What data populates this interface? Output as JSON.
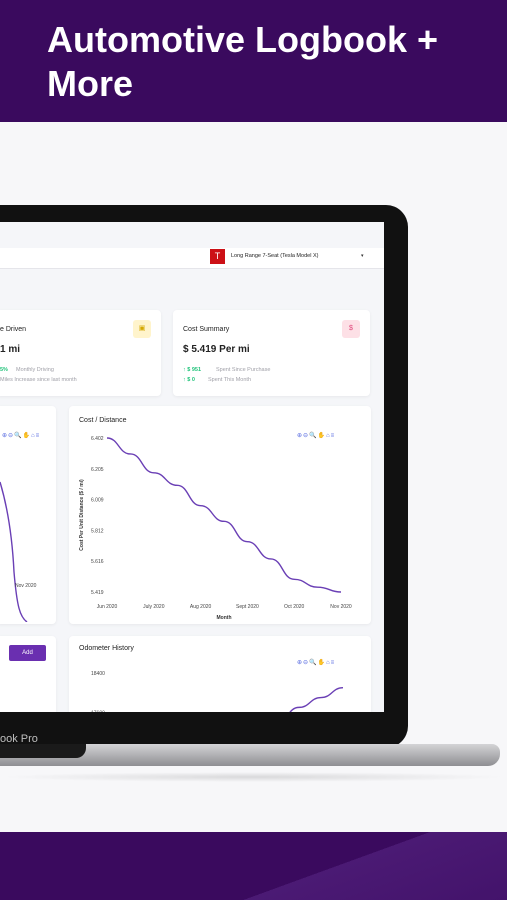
{
  "banner": {
    "title": "Automotive Logbook + More"
  },
  "laptop": {
    "label": "ook Pro"
  },
  "header": {
    "vehicle": "Long Range 7-Seat (Tesla Model X)",
    "caret": "▾"
  },
  "mileage_card": {
    "title": "e Driven",
    "value": "1 mi",
    "stat1_value": "5%",
    "stat1_label": "Monthly Driving",
    "stat2_label": "Miles Increase since last month",
    "icon": "calendar-icon"
  },
  "cost_card": {
    "title": "Cost Summary",
    "value": "$ 5.419 Per mi",
    "stat1_value": "$ 951",
    "stat1_label": "Spent Since Purchase",
    "stat2_value": "$ 0",
    "stat2_label": "Spent This Month",
    "icon": "money-icon"
  },
  "toolbar": {
    "glyphs": "⊕⊖🔍✋⌂≡"
  },
  "left_chart": {
    "x_label": "Nov 2020"
  },
  "add_card": {
    "add_label": "Add"
  },
  "cost_chart": {
    "title": "Cost / Distance"
  },
  "odometer": {
    "title": "Odometer History"
  },
  "chart_data": [
    {
      "type": "line",
      "title": "Cost / Distance",
      "xlabel": "Month",
      "ylabel": "Cost Per Unit Distance ($ / mi)",
      "categories": [
        "Jun 2020",
        "July 2020",
        "Aug 2020",
        "Sept 2020",
        "Oct 2020",
        "Nov 2020"
      ],
      "yticks": [
        "6.402",
        "6.205",
        "6.009",
        "5.812",
        "5.616",
        "5.419"
      ],
      "x": [
        0,
        0.5,
        1,
        1.5,
        2,
        2.5,
        3,
        3.5,
        4,
        4.5,
        5
      ],
      "y": [
        6.402,
        6.3,
        6.18,
        6.1,
        5.97,
        5.87,
        5.74,
        5.63,
        5.5,
        5.45,
        5.419
      ],
      "ylim": [
        5.419,
        6.402
      ],
      "color": "#6a3fb5"
    },
    {
      "type": "line",
      "title": "Odometer History",
      "yticks": [
        "18400",
        "17600"
      ],
      "x": [
        0,
        1,
        2,
        3
      ],
      "y": [
        17400,
        17700,
        17900,
        18100
      ],
      "color": "#6a3fb5"
    }
  ]
}
